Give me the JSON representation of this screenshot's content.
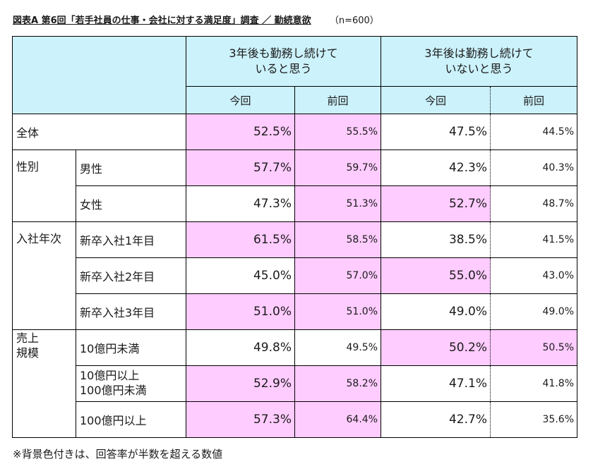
{
  "title": "図表A 第6回「若手社員の仕事・会社に対する満足度」調査 ／ 勤続意欲",
  "sample": "（n=600）",
  "header": {
    "group1": "3年後も勤務し続けて\nいると思う",
    "group2": "3年後は勤務し続けて\nいないと思う",
    "current": "今回",
    "previous": "前回"
  },
  "categories": {
    "overall": "全体",
    "gender": "性別",
    "entry_year": "入社年次",
    "sales_scale": "売上\n規模"
  },
  "rows": [
    {
      "label": "全体",
      "values": [
        "52.5%",
        "55.5%",
        "47.5%",
        "44.5%"
      ],
      "highlight": [
        true,
        true,
        false,
        false
      ]
    },
    {
      "label": "男性",
      "values": [
        "57.7%",
        "59.7%",
        "42.3%",
        "40.3%"
      ],
      "highlight": [
        true,
        true,
        false,
        false
      ]
    },
    {
      "label": "女性",
      "values": [
        "47.3%",
        "51.3%",
        "52.7%",
        "48.7%"
      ],
      "highlight": [
        false,
        true,
        true,
        false
      ]
    },
    {
      "label": "新卒入社1年目",
      "values": [
        "61.5%",
        "58.5%",
        "38.5%",
        "41.5%"
      ],
      "highlight": [
        true,
        true,
        false,
        false
      ]
    },
    {
      "label": "新卒入社2年目",
      "values": [
        "45.0%",
        "57.0%",
        "55.0%",
        "43.0%"
      ],
      "highlight": [
        false,
        true,
        true,
        false
      ]
    },
    {
      "label": "新卒入社3年目",
      "values": [
        "51.0%",
        "51.0%",
        "49.0%",
        "49.0%"
      ],
      "highlight": [
        true,
        true,
        false,
        false
      ]
    },
    {
      "label": "10億円未満",
      "values": [
        "49.8%",
        "49.5%",
        "50.2%",
        "50.5%"
      ],
      "highlight": [
        false,
        false,
        true,
        true
      ]
    },
    {
      "label": "10億円以上\n100億円未満",
      "values": [
        "52.9%",
        "58.2%",
        "47.1%",
        "41.8%"
      ],
      "highlight": [
        true,
        true,
        false,
        false
      ]
    },
    {
      "label": "100億円以上",
      "values": [
        "57.3%",
        "64.4%",
        "42.7%",
        "35.6%"
      ],
      "highlight": [
        true,
        true,
        false,
        false
      ]
    }
  ],
  "note": "※背景色付きは、回答率が半数を超える数値",
  "colors": {
    "header_bg": "#ccf2fb",
    "highlight_bg": "#ffccff"
  }
}
